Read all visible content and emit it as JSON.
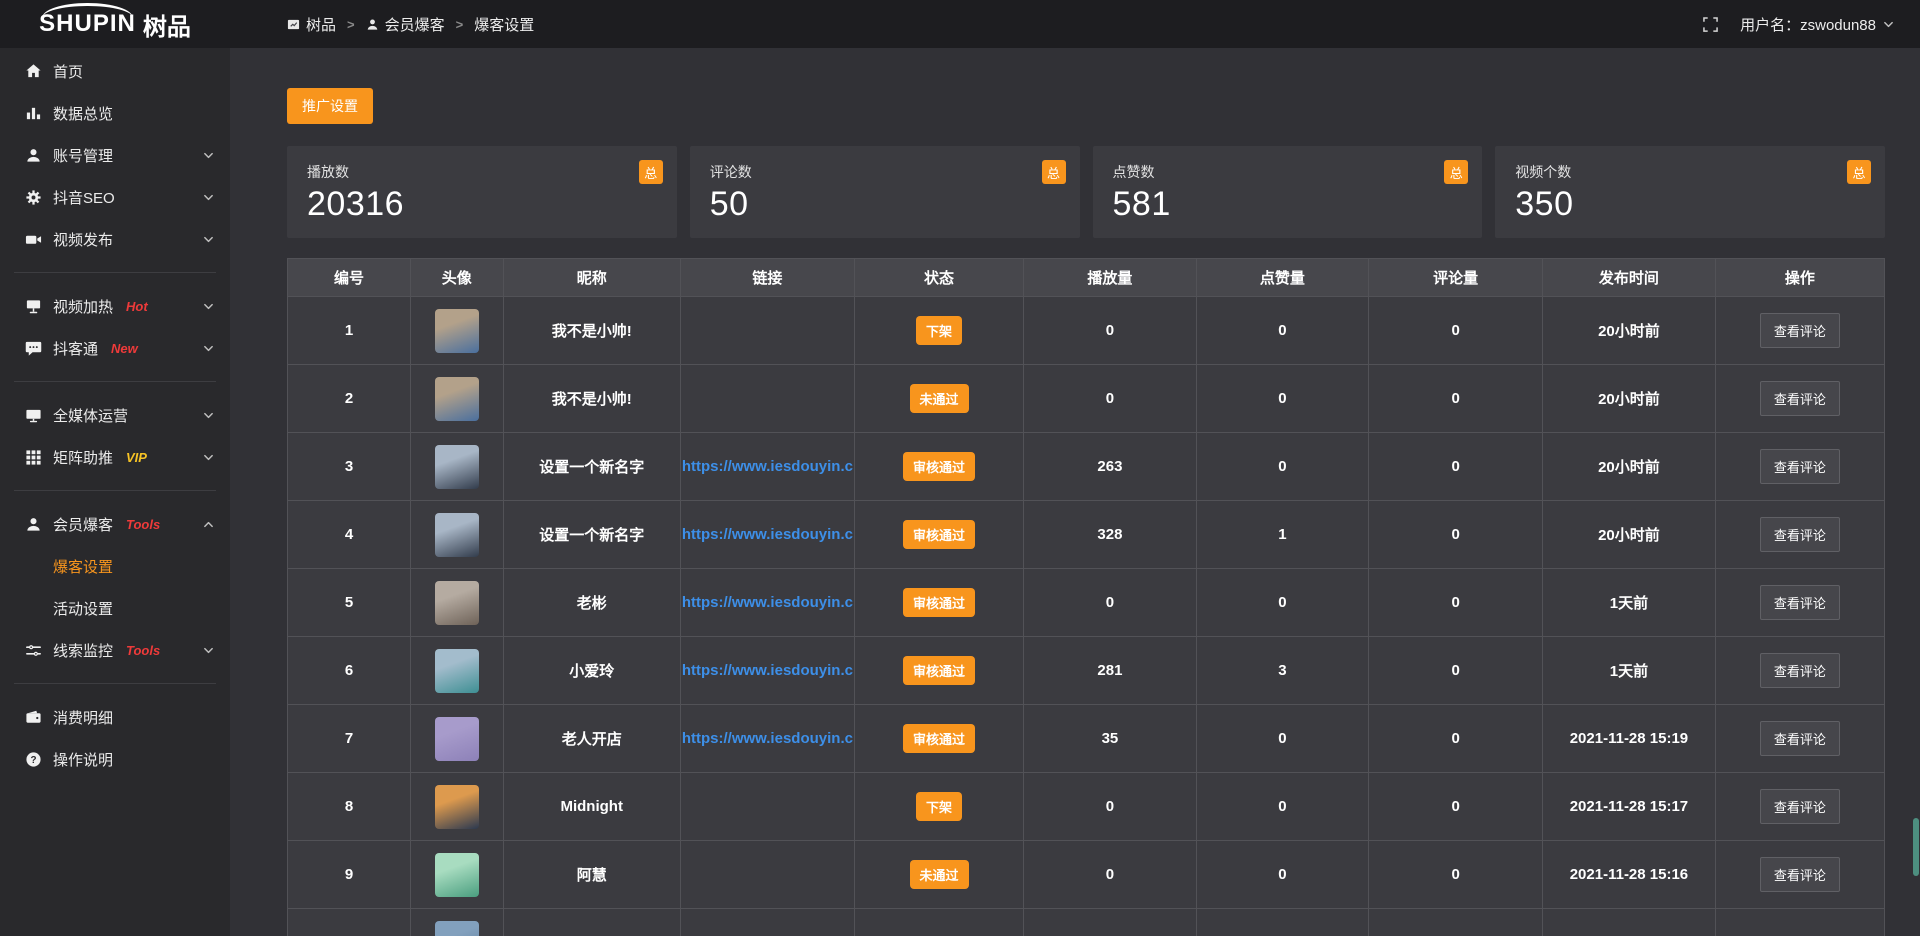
{
  "header": {
    "logo_text": "SHUPIN",
    "logo_cjk": "树品",
    "breadcrumb": [
      {
        "key": "shupin",
        "icon": "window",
        "label": "树品"
      },
      {
        "key": "member-baoke",
        "icon": "person",
        "label": "会员爆客"
      },
      {
        "key": "baoke-settings",
        "icon": "",
        "label": "爆客设置"
      }
    ],
    "separator": ">",
    "username": "用户名：zswodun88"
  },
  "sidebar": {
    "items": [
      {
        "type": "item",
        "key": "home",
        "icon": "home",
        "label": "首页"
      },
      {
        "type": "item",
        "key": "data-overview",
        "icon": "bar-chart",
        "label": "数据总览"
      },
      {
        "type": "item",
        "key": "account-management",
        "icon": "user",
        "label": "账号管理",
        "chevron": "down"
      },
      {
        "type": "item",
        "key": "douyin-seo",
        "icon": "gear",
        "label": "抖音SEO",
        "chevron": "down"
      },
      {
        "type": "item",
        "key": "video-publish",
        "icon": "video-camera",
        "label": "视频发布",
        "chevron": "down"
      },
      {
        "type": "divider"
      },
      {
        "type": "item",
        "key": "video-heating",
        "icon": "billboard",
        "label": "视频加热",
        "tag": "Hot",
        "tag_style": "red",
        "chevron": "down"
      },
      {
        "type": "item",
        "key": "douketong",
        "icon": "chat",
        "label": "抖客通",
        "tag": "New",
        "tag_style": "red",
        "chevron": "down"
      },
      {
        "type": "divider"
      },
      {
        "type": "item",
        "key": "all-media-operation",
        "icon": "monitor",
        "label": "全媒体运营",
        "chevron": "down"
      },
      {
        "type": "item",
        "key": "matrix-boost",
        "icon": "grid",
        "label": "矩阵助推",
        "tag": "VIP",
        "tag_style": "yellow",
        "chevron": "down"
      },
      {
        "type": "divider"
      },
      {
        "type": "item",
        "key": "member-baoke",
        "icon": "member",
        "label": "会员爆客",
        "tag": "Tools",
        "tag_style": "red",
        "chevron": "up",
        "children": [
          {
            "key": "baoke-settings",
            "label": "爆客设置",
            "active": true
          },
          {
            "key": "activity-settings",
            "label": "活动设置",
            "active": false
          }
        ]
      },
      {
        "type": "item",
        "key": "clue-monitoring",
        "icon": "sliders",
        "label": "线索监控",
        "tag": "Tools",
        "tag_style": "red",
        "chevron": "down"
      },
      {
        "type": "divider"
      },
      {
        "type": "item",
        "key": "consumption-details",
        "icon": "wallet",
        "label": "消费明细"
      },
      {
        "type": "item",
        "key": "operation-guide",
        "icon": "help",
        "label": "操作说明"
      }
    ]
  },
  "toolbar": {
    "promo_button": "推广设置"
  },
  "stat_cards": [
    {
      "key": "plays",
      "label": "播放数",
      "value": "20316",
      "badge": "总"
    },
    {
      "key": "comments",
      "label": "评论数",
      "value": "50",
      "badge": "总"
    },
    {
      "key": "likes",
      "label": "点赞数",
      "value": "581",
      "badge": "总"
    },
    {
      "key": "videos",
      "label": "视频个数",
      "value": "350",
      "badge": "总"
    }
  ],
  "table": {
    "headers": [
      "编号",
      "头像",
      "昵称",
      "链接",
      "状态",
      "播放量",
      "点赞量",
      "评论量",
      "发布时间",
      "操作"
    ],
    "action_label": "查看评论",
    "rows": [
      {
        "id": "1",
        "avatar_colors": [
          "#b3a18a",
          "#4a6f9e"
        ],
        "nickname": "我不是小帅!",
        "link": "",
        "status": "下架",
        "plays": "0",
        "likes": "0",
        "comments": "0",
        "time": "20小时前"
      },
      {
        "id": "2",
        "avatar_colors": [
          "#b3a18a",
          "#4a6f9e"
        ],
        "nickname": "我不是小帅!",
        "link": "",
        "status": "未通过",
        "plays": "0",
        "likes": "0",
        "comments": "0",
        "time": "20小时前"
      },
      {
        "id": "3",
        "avatar_colors": [
          "#a8b6c6",
          "#323c4c"
        ],
        "nickname": "设置一个新名字",
        "link": "https://www.iesdouyin.c",
        "status": "审核通过",
        "plays": "263",
        "likes": "0",
        "comments": "0",
        "time": "20小时前"
      },
      {
        "id": "4",
        "avatar_colors": [
          "#a8b6c6",
          "#323c4c"
        ],
        "nickname": "设置一个新名字",
        "link": "https://www.iesdouyin.c",
        "status": "审核通过",
        "plays": "328",
        "likes": "1",
        "comments": "0",
        "time": "20小时前"
      },
      {
        "id": "5",
        "avatar_colors": [
          "#b5aba1",
          "#6e6258"
        ],
        "nickname": "老彬",
        "link": "https://www.iesdouyin.c",
        "status": "审核通过",
        "plays": "0",
        "likes": "0",
        "comments": "0",
        "time": "1天前"
      },
      {
        "id": "6",
        "avatar_colors": [
          "#a3bccc",
          "#3e8f93"
        ],
        "nickname": "小爱玲",
        "link": "https://www.iesdouyin.c",
        "status": "审核通过",
        "plays": "281",
        "likes": "3",
        "comments": "0",
        "time": "1天前"
      },
      {
        "id": "7",
        "avatar_colors": [
          "#a79bcb",
          "#8d81b8"
        ],
        "nickname": "老人开店",
        "link": "https://www.iesdouyin.c",
        "status": "审核通过",
        "plays": "35",
        "likes": "0",
        "comments": "0",
        "time": "2021-11-28 15:19"
      },
      {
        "id": "8",
        "avatar_colors": [
          "#dd9a4e",
          "#2b3950"
        ],
        "nickname": "Midnight",
        "link": "",
        "status": "下架",
        "plays": "0",
        "likes": "0",
        "comments": "0",
        "time": "2021-11-28 15:17"
      },
      {
        "id": "9",
        "avatar_colors": [
          "#a8dcc0",
          "#4a9e7f"
        ],
        "nickname": "阿慧",
        "link": "",
        "status": "未通过",
        "plays": "0",
        "likes": "0",
        "comments": "0",
        "time": "2021-11-28 15:16"
      }
    ],
    "partial_row": {
      "avatar_colors": [
        "#82a0bd",
        "#5d7c9c"
      ]
    }
  },
  "colors": {
    "accent": "#f8951d",
    "link": "#3d8fe8",
    "tag_red": "#ee3a3a",
    "tag_yellow": "#f7c325"
  }
}
